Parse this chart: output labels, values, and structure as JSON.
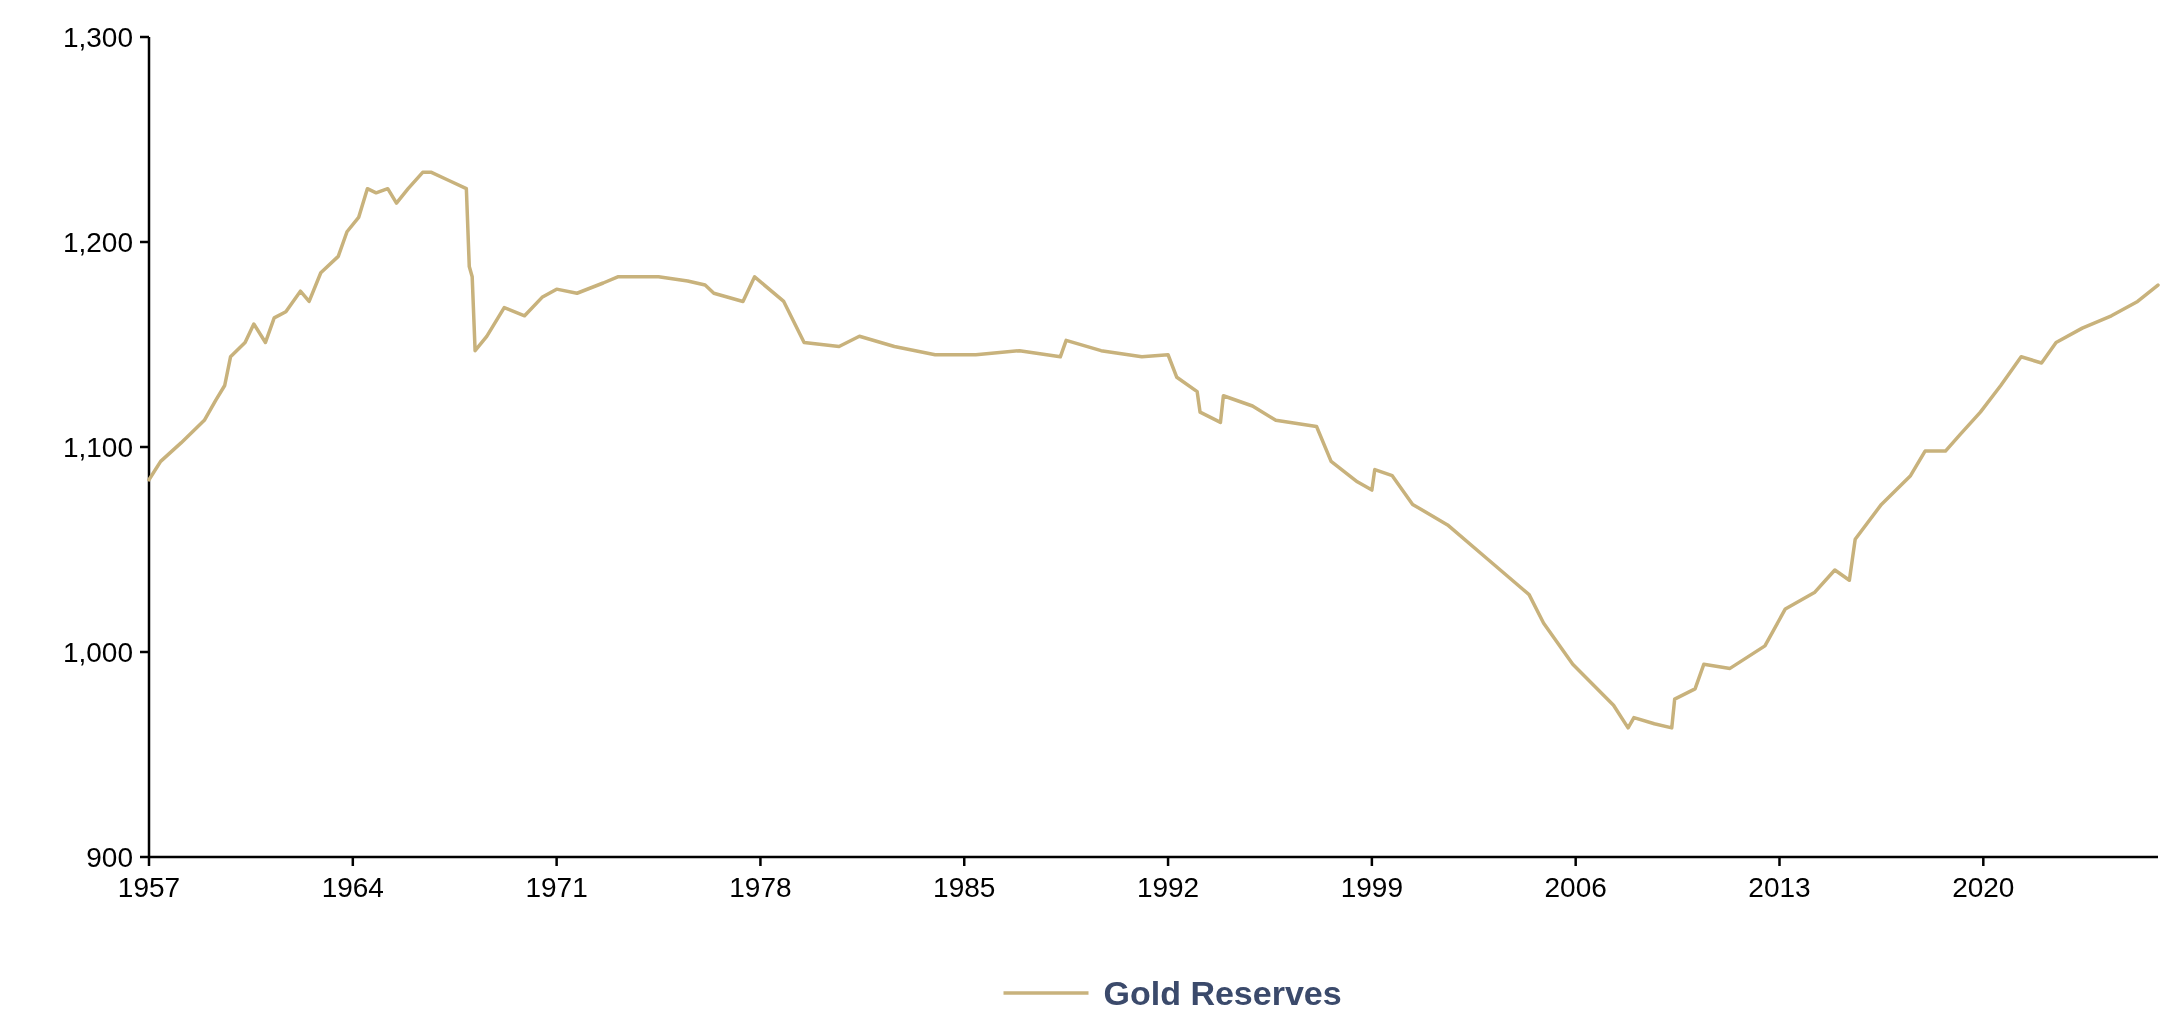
{
  "chart_data": {
    "type": "line",
    "x": [
      1957.0,
      1957.4,
      1958.1,
      1958.9,
      1959.3,
      1959.6,
      1959.8,
      1960.3,
      1960.6,
      1961.0,
      1961.3,
      1961.7,
      1962.2,
      1962.5,
      1962.9,
      1963.5,
      1963.8,
      1964.2,
      1964.5,
      1964.8,
      1965.2,
      1965.5,
      1965.9,
      1966.4,
      1966.7,
      1967.3,
      1967.9,
      1968.0,
      1968.1,
      1968.2,
      1968.6,
      1969.2,
      1969.9,
      1970.5,
      1971.0,
      1971.7,
      1972.6,
      1973.1,
      1973.8,
      1974.5,
      1975.5,
      1976.1,
      1976.4,
      1977.4,
      1977.8,
      1978.8,
      1979.5,
      1980.7,
      1981.4,
      1982.6,
      1984.0,
      1985.4,
      1986.9,
      1988.3,
      1988.5,
      1989.7,
      1991.1,
      1992.0,
      1992.3,
      1993.0,
      1993.1,
      1993.8,
      1993.9,
      1994.9,
      1995.7,
      1997.1,
      1997.6,
      1998.5,
      1999.0,
      1999.1,
      1999.7,
      2000.4,
      2001.6,
      2003.0,
      2004.4,
      2004.9,
      2005.9,
      2007.3,
      2007.8,
      2008.0,
      2008.7,
      2009.3,
      2009.4,
      2010.1,
      2010.4,
      2011.3,
      2012.5,
      2013.2,
      2014.2,
      2014.9,
      2015.4,
      2015.6,
      2016.5,
      2017.5,
      2018.0,
      2018.7,
      2019.2,
      2019.9,
      2020.6,
      2021.3,
      2022.0,
      2022.5,
      2023.4,
      2024.4,
      2025.3,
      2026.0
    ],
    "series": [
      {
        "name": "Gold Reserves",
        "color": "#c8b27c",
        "values": [
          1084,
          1093,
          1102,
          1113,
          1123,
          1130,
          1144,
          1151,
          1160,
          1151,
          1163,
          1166,
          1176,
          1171,
          1185,
          1193,
          1205,
          1212,
          1226,
          1224,
          1226,
          1219,
          1226,
          1234,
          1234,
          1230,
          1226,
          1188,
          1183,
          1147,
          1154,
          1168,
          1164,
          1173,
          1177,
          1175,
          1180,
          1183,
          1183,
          1183,
          1181,
          1179,
          1175,
          1171,
          1183,
          1171,
          1151,
          1149,
          1154,
          1149,
          1145,
          1145,
          1147,
          1144,
          1152,
          1147,
          1144,
          1145,
          1134,
          1127,
          1117,
          1112,
          1125,
          1120,
          1113,
          1110,
          1093,
          1083,
          1079,
          1089,
          1086,
          1072,
          1062,
          1045,
          1028,
          1014,
          994,
          974,
          963,
          968,
          965,
          963,
          977,
          982,
          994,
          992,
          1003,
          1021,
          1029,
          1040,
          1035,
          1055,
          1072,
          1086,
          1098,
          1098,
          1106,
          1117,
          1130,
          1144,
          1141,
          1151,
          1158,
          1164,
          1171,
          1179
        ]
      }
    ],
    "xlim": [
      1957,
      2026
    ],
    "xticks": [
      1957,
      1964,
      1971,
      1978,
      1985,
      1992,
      1999,
      2006,
      2013,
      2020
    ],
    "ylim": [
      900,
      1300
    ],
    "yticks": [
      900,
      {
        "value": 1000,
        "label": "1,000"
      },
      {
        "value": 1100,
        "label": "1,100"
      },
      {
        "value": 1200,
        "label": "1,200"
      },
      {
        "value": 1300,
        "label": "1,300"
      }
    ],
    "grid": false,
    "legend": "bottom",
    "marker": "none",
    "line_style": "solid"
  }
}
